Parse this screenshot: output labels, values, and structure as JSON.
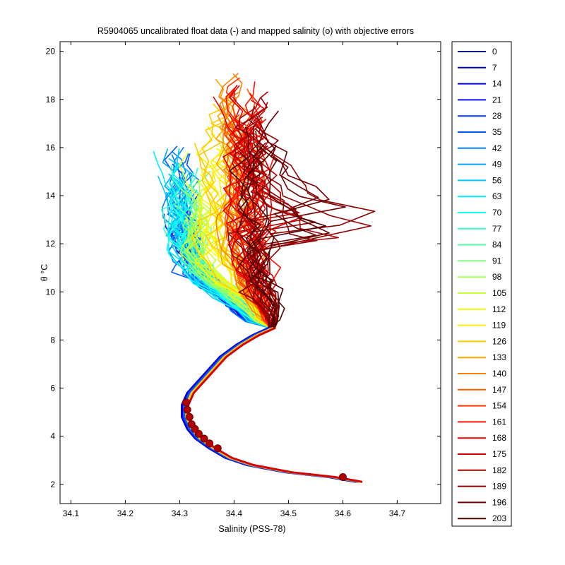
{
  "chart_data": {
    "type": "line",
    "title": "R5904065 uncalibrated float data (-) and mapped salinity (o) with objective errors",
    "xlabel": "Salinity (PSS-78)",
    "ylabel": "θ °C",
    "xlim": [
      34.08,
      34.78
    ],
    "ylim": [
      1.2,
      20.4
    ],
    "x_ticks": [
      "34.1",
      "34.2",
      "34.3",
      "34.4",
      "34.5",
      "34.6",
      "34.7"
    ],
    "x_tick_values": [
      34.1,
      34.2,
      34.3,
      34.4,
      34.5,
      34.6,
      34.7
    ],
    "y_ticks": [
      "2",
      "4",
      "6",
      "8",
      "10",
      "12",
      "14",
      "16",
      "18",
      "20"
    ],
    "y_tick_values": [
      2,
      4,
      6,
      8,
      10,
      12,
      14,
      16,
      18,
      20
    ],
    "grid": false,
    "legend_position": "right-outside",
    "colormap": "jet",
    "legend": [
      "0",
      "7",
      "14",
      "21",
      "28",
      "35",
      "42",
      "49",
      "56",
      "63",
      "70",
      "77",
      "84",
      "91",
      "98",
      "105",
      "112",
      "119",
      "126",
      "133",
      "140",
      "147",
      "154",
      "161",
      "168",
      "175",
      "182",
      "189",
      "196",
      "203"
    ],
    "legend_colors": [
      "#000090",
      "#0000b0",
      "#0000d4",
      "#0010f0",
      "#0035ff",
      "#005aff",
      "#0080ff",
      "#00a5ff",
      "#00caff",
      "#00eeff",
      "#10ffef",
      "#35ffca",
      "#5affa5",
      "#80ff80",
      "#a5ff5a",
      "#caff35",
      "#efff10",
      "#ffee00",
      "#ffca00",
      "#ffa500",
      "#ff8000",
      "#ff5a00",
      "#ff3500",
      "#ff1000",
      "#f00000",
      "#d40000",
      "#b00000",
      "#900000",
      "#6e0000",
      "#500000"
    ],
    "common_profile": {
      "theta": [
        2.1,
        2.3,
        2.5,
        2.8,
        3.1,
        3.5,
        3.9,
        4.3,
        4.8,
        5.3,
        5.8,
        6.3,
        6.8,
        7.3,
        7.8,
        8.2,
        8.5
      ],
      "salinity": [
        34.63,
        34.58,
        34.5,
        34.43,
        34.39,
        34.36,
        34.335,
        34.32,
        34.31,
        34.31,
        34.32,
        34.34,
        34.36,
        34.38,
        34.41,
        34.44,
        34.47
      ]
    },
    "mapped_salinity": {
      "theta": [
        2.3,
        3.5,
        3.7,
        3.9,
        4.1,
        4.3,
        4.5,
        4.8,
        5.1,
        5.4
      ],
      "salinity": [
        34.6,
        34.37,
        34.355,
        34.345,
        34.335,
        34.328,
        34.322,
        34.318,
        34.314,
        34.312
      ],
      "color": "#b00000"
    }
  }
}
